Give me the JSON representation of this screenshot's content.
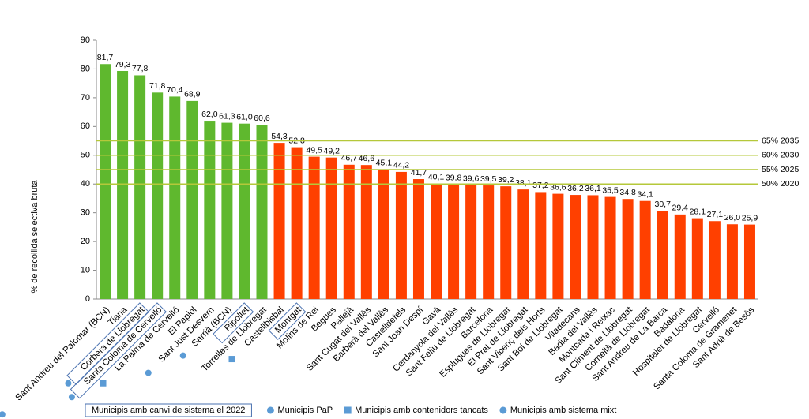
{
  "chart_data": {
    "type": "bar",
    "y_label": "% de recollida selectiva bruta",
    "categories": [
      "Sant Andreu del Palomar (BCN)",
      "Tiana",
      "Corbera de Llobregat",
      "Santa Coloma de Cervelló",
      "La Palma de Cervelló",
      "El Papiol",
      "Sant Just Desvern",
      "Sarrià (BCN)",
      "Ripollet",
      "Torrelles de Llobregat",
      "Castellbisbal",
      "Montgat",
      "Molins de Rei",
      "Begues",
      "Pallejà",
      "Sant Cugat del Vallès",
      "Barberà del Vallès",
      "Castelldefels",
      "Sant Joan Despí",
      "Gavà",
      "Cerdanyola del Vallès",
      "Sant Feliu de Llobregat",
      "Barcelona",
      "Esplugues de Llobregat",
      "El Prat de Llobregat",
      "Sant Vicenç dels Horts",
      "Sant Boi de Llobregat",
      "Viladecans",
      "Badia del Vallès",
      "Montcada i Reixac",
      "Sant Climent de Llobregat",
      "Cornellà de Llobregat",
      "Sant Andreu de La Barca",
      "Badalona",
      "Hospitalet de Llobregat",
      "Cervelló",
      "Santa Coloma de Gramenet",
      "Sant Adrià de Besòs"
    ],
    "values": [
      81.7,
      79.3,
      77.8,
      71.8,
      70.4,
      68.9,
      62.0,
      61.3,
      61.0,
      60.6,
      54.3,
      52.8,
      49.5,
      49.2,
      46.7,
      46.6,
      45.1,
      44.2,
      41.7,
      40.1,
      39.8,
      39.6,
      39.5,
      39.2,
      38.1,
      37.2,
      36.6,
      36.2,
      36.1,
      35.5,
      34.8,
      34.1,
      30.7,
      29.4,
      28.1,
      27.1,
      26.0,
      25.9
    ],
    "value_labels": [
      "81,7",
      "79,3",
      "77,8",
      "71,8",
      "70,4",
      "68,9",
      "62,0",
      "61,3",
      "61,0",
      "60,6",
      "54,3",
      "52,8",
      "49,5",
      "49,2",
      "46,7",
      "46,6",
      "45,1",
      "44,2",
      "41,7",
      "40,1",
      "39,8",
      "39,6",
      "39,5",
      "39,2",
      "38,1",
      "37,2",
      "36,6",
      "36,2",
      "36,1",
      "35,5",
      "34,8",
      "34,1",
      "30,7",
      "29,4",
      "28,1",
      "27,1",
      "26,0",
      "25,9"
    ],
    "bar_colors": [
      "#5fb82e",
      "#5fb82e",
      "#5fb82e",
      "#5fb82e",
      "#5fb82e",
      "#5fb82e",
      "#5fb82e",
      "#5fb82e",
      "#5fb82e",
      "#5fb82e",
      "#ff4000",
      "#ff4000",
      "#ff4000",
      "#ff4000",
      "#ff4000",
      "#ff4000",
      "#ff4000",
      "#ff4000",
      "#ff4000",
      "#ff4000",
      "#ff4000",
      "#ff4000",
      "#ff4000",
      "#ff4000",
      "#ff4000",
      "#ff4000",
      "#ff4000",
      "#ff4000",
      "#ff4000",
      "#ff4000",
      "#ff4000",
      "#ff4000",
      "#ff4000",
      "#ff4000",
      "#ff4000",
      "#ff4000",
      "#ff4000",
      "#ff4000"
    ],
    "ylim": [
      0,
      90
    ],
    "yticks": [
      0,
      10,
      20,
      30,
      40,
      50,
      60,
      70,
      80,
      90
    ],
    "reference_lines": [
      {
        "value": 55,
        "label": "65% 2035"
      },
      {
        "value": 50,
        "label": "60% 2030"
      },
      {
        "value": 45,
        "label": "55% 2025"
      },
      {
        "value": 40,
        "label": "50% 2020"
      }
    ],
    "reference_color": "#b5c83a",
    "legend": [
      {
        "label": "Municipis amb canvi de sistema el 2022",
        "symbol": "box",
        "members": [
          2,
          3,
          8,
          11
        ]
      },
      {
        "label": "Municipis PaP",
        "symbol": "circle",
        "color": "#5b9bd5",
        "members": [
          0,
          2,
          6,
          7
        ]
      },
      {
        "label": "Municipis amb contenidors tancats",
        "symbol": "square",
        "color": "#5b9bd5",
        "members": [
          4,
          10
        ]
      },
      {
        "label": "Municipis amb sistema mixt",
        "symbol": "circle",
        "color": "#5b9bd5",
        "members": [
          3
        ]
      }
    ]
  }
}
